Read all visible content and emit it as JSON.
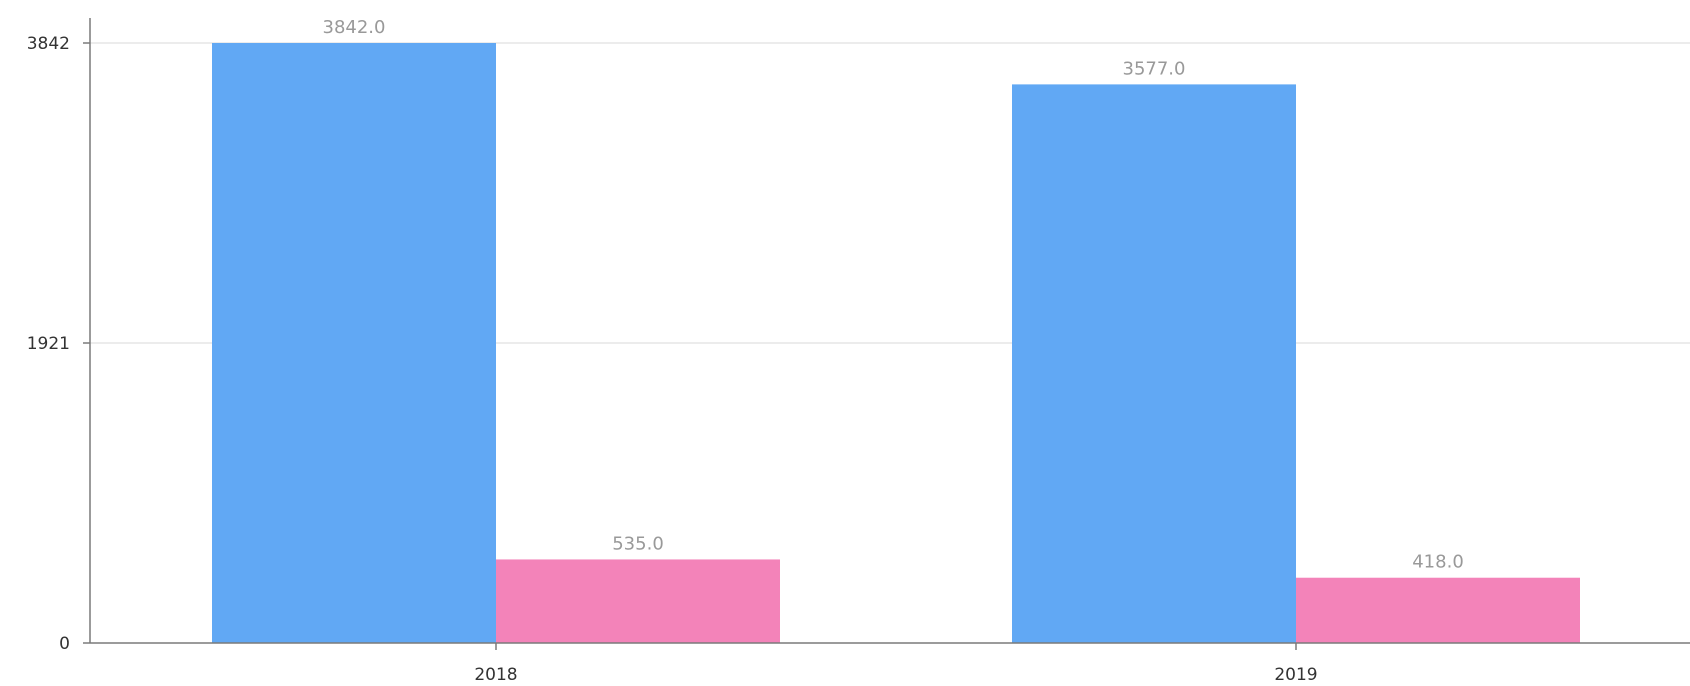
{
  "chart_data": {
    "type": "bar",
    "title": "",
    "xlabel": "",
    "ylabel": "",
    "categories": [
      "2018",
      "2019"
    ],
    "series": [
      {
        "color": "#61a8f4",
        "values": [
          3842.0,
          3577.0
        ]
      },
      {
        "color": "#f383b9",
        "values": [
          535.0,
          418.0
        ]
      }
    ],
    "ylim": [
      0,
      3842
    ],
    "yticks": [
      0,
      1921,
      3842
    ],
    "ytick_labels": [
      "0",
      "1921",
      "3842"
    ],
    "data_labels": [
      [
        "3842.0",
        "3577.0"
      ],
      [
        "535.0",
        "418.0"
      ]
    ],
    "grid": true,
    "legend": "none",
    "colors": {
      "grid": "#e6e6e6",
      "axis": "#7a7a7a",
      "tick_text": "#333333",
      "data_label_text": "#999999"
    }
  }
}
